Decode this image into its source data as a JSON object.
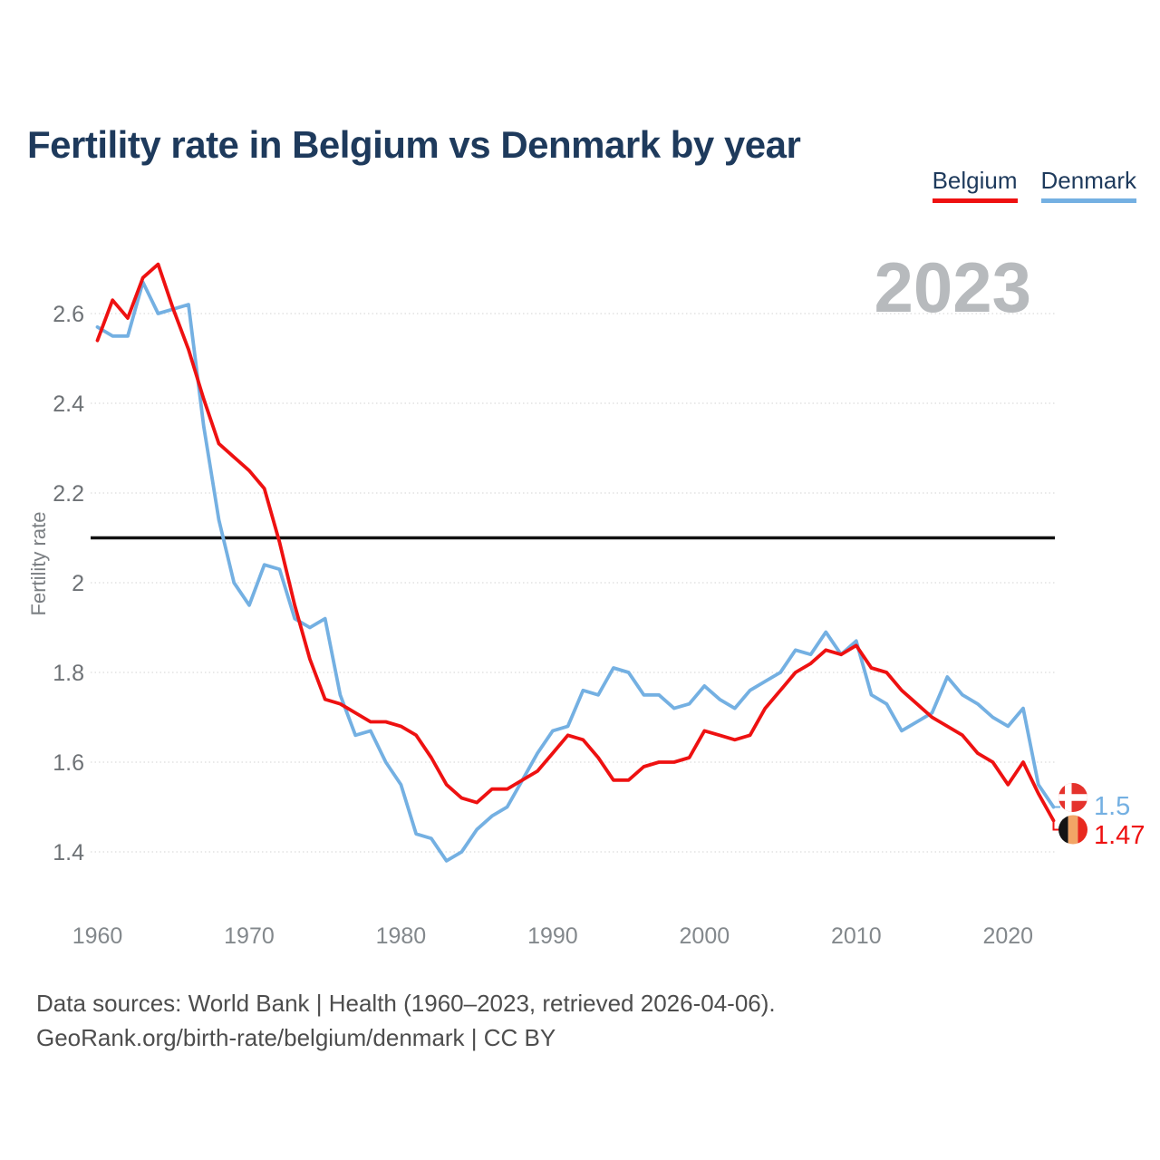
{
  "header": {
    "title": "Fertility rate in Belgium vs Denmark by year"
  },
  "legend": {
    "position": "top-right",
    "items": [
      {
        "label": "Belgium",
        "color": "#ee1111"
      },
      {
        "label": "Denmark",
        "color": "#74b0e2"
      }
    ]
  },
  "watermark": {
    "text": "2023"
  },
  "footer": {
    "line1": "Data sources: World Bank | Health (1960–2023, retrieved 2026-04-06).",
    "line2": "GeoRank.org/birth-rate/belgium/denmark | CC BY"
  },
  "colors": {
    "belgium_line": "#ee1111",
    "denmark_line": "#74b0e2",
    "title_text": "#1e3a5c",
    "y_axis_text": "#6e7276",
    "x_axis_text": "#83888c",
    "grid": "#dcdcdc",
    "reference_line": "#111111",
    "watermark": "#b7babd",
    "footer_text": "#4d4d4d",
    "flag_denmark_red": "#e5332d",
    "flag_cross_white": "#ffffff",
    "flag_belgium_black": "#141414",
    "flag_belgium_yellow": "#f2a566",
    "flag_belgium_red": "#e8291e"
  },
  "chart_data": {
    "type": "line",
    "title": "Fertility rate in Belgium vs Denmark by year",
    "xlabel": "",
    "ylabel": "Fertility rate",
    "x_start": 1960,
    "x_end": 2023,
    "xticks": [
      1960,
      1970,
      1980,
      1990,
      2000,
      2010,
      2020
    ],
    "yticks": [
      2.6,
      2.4,
      2.2,
      2,
      1.8,
      1.6,
      1.4
    ],
    "ylim": [
      1.28,
      2.79
    ],
    "grid": "horizontal-dotted",
    "legend_position": "top-right",
    "reference_line": 2.1,
    "series": [
      {
        "name": "Belgium",
        "color": "#ee1111",
        "end_label": "1.47",
        "flag": "belgium",
        "values": [
          2.54,
          2.63,
          2.59,
          2.68,
          2.71,
          2.61,
          2.52,
          2.41,
          2.31,
          2.28,
          2.25,
          2.21,
          2.09,
          1.95,
          1.83,
          1.74,
          1.73,
          1.71,
          1.69,
          1.69,
          1.68,
          1.66,
          1.61,
          1.55,
          1.52,
          1.51,
          1.54,
          1.54,
          1.56,
          1.58,
          1.62,
          1.66,
          1.65,
          1.61,
          1.56,
          1.56,
          1.59,
          1.6,
          1.6,
          1.61,
          1.67,
          1.66,
          1.65,
          1.66,
          1.72,
          1.76,
          1.8,
          1.82,
          1.85,
          1.84,
          1.86,
          1.81,
          1.8,
          1.76,
          1.73,
          1.7,
          1.68,
          1.66,
          1.62,
          1.6,
          1.55,
          1.6,
          1.53,
          1.47
        ]
      },
      {
        "name": "Denmark",
        "color": "#74b0e2",
        "end_label": "1.5",
        "flag": "denmark",
        "values": [
          2.57,
          2.55,
          2.55,
          2.67,
          2.6,
          2.61,
          2.62,
          2.35,
          2.14,
          2.0,
          1.95,
          2.04,
          2.03,
          1.92,
          1.9,
          1.92,
          1.75,
          1.66,
          1.67,
          1.6,
          1.55,
          1.44,
          1.43,
          1.38,
          1.4,
          1.45,
          1.48,
          1.5,
          1.56,
          1.62,
          1.67,
          1.68,
          1.76,
          1.75,
          1.81,
          1.8,
          1.75,
          1.75,
          1.72,
          1.73,
          1.77,
          1.74,
          1.72,
          1.76,
          1.78,
          1.8,
          1.85,
          1.84,
          1.89,
          1.84,
          1.87,
          1.75,
          1.73,
          1.67,
          1.69,
          1.71,
          1.79,
          1.75,
          1.73,
          1.7,
          1.68,
          1.72,
          1.55,
          1.5
        ]
      }
    ]
  }
}
